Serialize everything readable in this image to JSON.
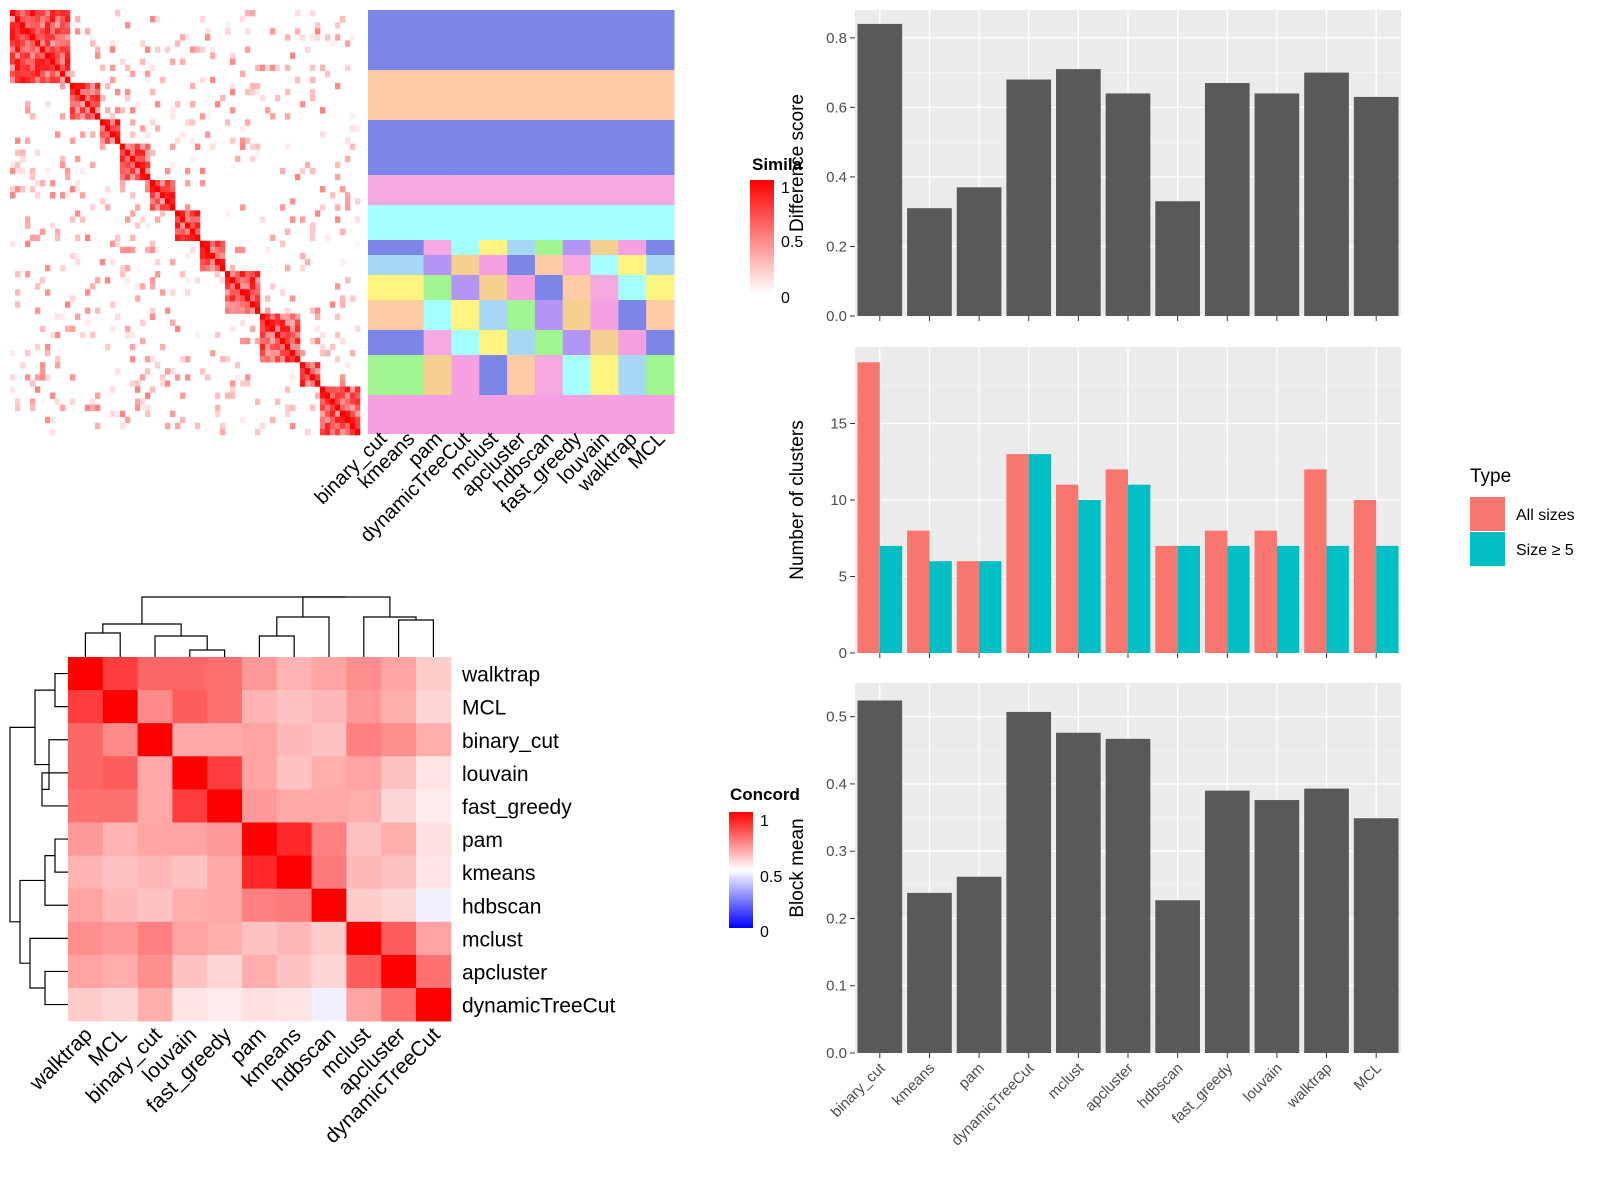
{
  "similarity_legend": {
    "title": "Simila",
    "ticks": [
      "1",
      "0.5",
      "0"
    ]
  },
  "concordance_legend": {
    "title": "Concord",
    "ticks": [
      "1",
      "0.5",
      "0"
    ]
  },
  "type_legend": {
    "title": "Type",
    "entries": [
      "All sizes",
      "Size ≥ 5"
    ],
    "colors": [
      "#F8766D",
      "#00BFC4"
    ]
  },
  "methods": [
    "binary_cut",
    "kmeans",
    "pam",
    "dynamicTreeCut",
    "mclust",
    "apcluster",
    "hdbscan",
    "fast_greedy",
    "louvain",
    "walktrap",
    "MCL"
  ],
  "cluster_panel": {
    "column_labels": [
      "binary_cut",
      "kmeans",
      "pam",
      "dynamicTreeCut",
      "mclust",
      "apcluster",
      "hdbscan",
      "fast_greedy",
      "louvain",
      "walktrap",
      "MCL"
    ]
  },
  "colors": {
    "bar_dark": "#595959",
    "panel_bg": "#EBEBEB",
    "grid": "#FFFFFF",
    "sim_high": "#FF0000",
    "sim_low": "#FFFFFF",
    "conc_low": "#0000FF"
  },
  "chart_data": [
    {
      "type": "heatmap",
      "panel": "concordance",
      "legend_title": "Concord",
      "row_labels": [
        "walktrap",
        "MCL",
        "binary_cut",
        "louvain",
        "fast_greedy",
        "pam",
        "kmeans",
        "hdbscan",
        "mclust",
        "apcluster",
        "dynamicTreeCut"
      ],
      "col_labels": [
        "walktrap",
        "MCL",
        "binary_cut",
        "louvain",
        "fast_greedy",
        "pam",
        "kmeans",
        "hdbscan",
        "mclust",
        "apcluster",
        "dynamicTreeCut"
      ],
      "values": [
        [
          1.0,
          0.88,
          0.8,
          0.8,
          0.78,
          0.7,
          0.65,
          0.68,
          0.72,
          0.68,
          0.6
        ],
        [
          0.88,
          1.0,
          0.73,
          0.82,
          0.78,
          0.65,
          0.62,
          0.64,
          0.7,
          0.66,
          0.58
        ],
        [
          0.8,
          0.73,
          1.0,
          0.67,
          0.67,
          0.68,
          0.64,
          0.62,
          0.75,
          0.72,
          0.66
        ],
        [
          0.8,
          0.82,
          0.67,
          1.0,
          0.88,
          0.68,
          0.62,
          0.66,
          0.68,
          0.62,
          0.55
        ],
        [
          0.78,
          0.78,
          0.67,
          0.88,
          1.0,
          0.7,
          0.67,
          0.67,
          0.66,
          0.58,
          0.54
        ],
        [
          0.7,
          0.65,
          0.68,
          0.68,
          0.7,
          1.0,
          0.92,
          0.75,
          0.62,
          0.66,
          0.56
        ],
        [
          0.65,
          0.62,
          0.64,
          0.62,
          0.67,
          0.92,
          1.0,
          0.76,
          0.64,
          0.62,
          0.55
        ],
        [
          0.68,
          0.64,
          0.62,
          0.66,
          0.67,
          0.75,
          0.76,
          1.0,
          0.6,
          0.58,
          0.47
        ],
        [
          0.72,
          0.7,
          0.75,
          0.68,
          0.66,
          0.62,
          0.64,
          0.6,
          1.0,
          0.82,
          0.68
        ],
        [
          0.68,
          0.66,
          0.72,
          0.62,
          0.58,
          0.66,
          0.62,
          0.58,
          0.82,
          1.0,
          0.78
        ],
        [
          0.6,
          0.58,
          0.66,
          0.55,
          0.54,
          0.56,
          0.55,
          0.47,
          0.68,
          0.78,
          1.0
        ]
      ],
      "range": [
        0,
        1
      ]
    },
    {
      "type": "bar",
      "panel": "difference",
      "categories": [
        "binary_cut",
        "kmeans",
        "pam",
        "dynamicTreeCut",
        "mclust",
        "apcluster",
        "hdbscan",
        "fast_greedy",
        "louvain",
        "walktrap",
        "MCL"
      ],
      "values": [
        0.84,
        0.31,
        0.37,
        0.68,
        0.71,
        0.64,
        0.33,
        0.67,
        0.64,
        0.7,
        0.63
      ],
      "ylabel": "Difference score",
      "ylim": [
        0,
        0.88
      ],
      "yticks": [
        "0.0",
        "0.2",
        "0.4",
        "0.6",
        "0.8"
      ],
      "ytick_values": [
        0,
        0.2,
        0.4,
        0.6,
        0.8
      ]
    },
    {
      "type": "bar",
      "panel": "clusters",
      "categories": [
        "binary_cut",
        "kmeans",
        "pam",
        "dynamicTreeCut",
        "mclust",
        "apcluster",
        "hdbscan",
        "fast_greedy",
        "louvain",
        "walktrap",
        "MCL"
      ],
      "series": [
        {
          "name": "All sizes",
          "values": [
            19,
            8,
            6,
            13,
            11,
            12,
            7,
            8,
            8,
            12,
            10
          ]
        },
        {
          "name": "Size ≥ 5",
          "values": [
            7,
            6,
            6,
            13,
            10,
            11,
            7,
            7,
            7,
            7,
            7
          ]
        }
      ],
      "ylabel": "Number of clusters",
      "ylim": [
        0,
        20
      ],
      "yticks": [
        "0",
        "5",
        "10",
        "15"
      ],
      "ytick_values": [
        0,
        5,
        10,
        15
      ]
    },
    {
      "type": "bar",
      "panel": "block",
      "categories": [
        "binary_cut",
        "kmeans",
        "pam",
        "dynamicTreeCut",
        "mclust",
        "apcluster",
        "hdbscan",
        "fast_greedy",
        "louvain",
        "walktrap",
        "MCL"
      ],
      "values": [
        0.524,
        0.238,
        0.262,
        0.507,
        0.476,
        0.467,
        0.227,
        0.39,
        0.376,
        0.393,
        0.349
      ],
      "ylabel": "Block mean",
      "ylim": [
        0,
        0.55
      ],
      "yticks": [
        "0.0",
        "0.1",
        "0.2",
        "0.3",
        "0.4",
        "0.5"
      ],
      "ytick_values": [
        0,
        0.1,
        0.2,
        0.3,
        0.4,
        0.5
      ]
    }
  ]
}
